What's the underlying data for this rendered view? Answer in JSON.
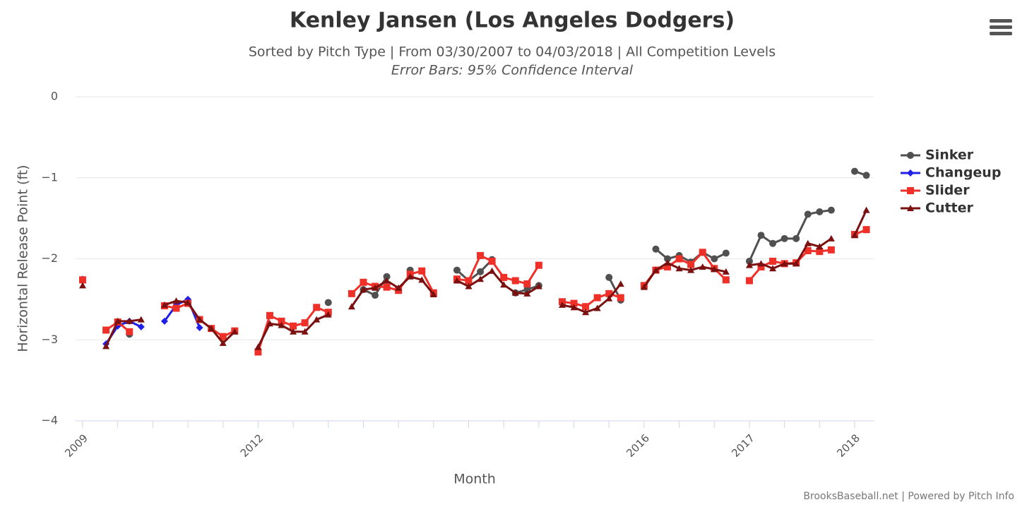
{
  "chart_data": {
    "type": "line",
    "title": "Kenley Jansen (Los Angeles Dodgers)",
    "subtitle": "Sorted by Pitch Type | From 03/30/2007 to 04/03/2018 | All Competition Levels",
    "note": "Error Bars: 95% Confidence Interval",
    "x_label": "Month",
    "y_label": "Horizontal Release Point (ft)",
    "credits": "BrooksBaseball.net | Powered by Pitch Info",
    "ylim": [
      -4,
      0
    ],
    "yticks": [
      0,
      {
        "value": -1,
        "label": "−1"
      },
      {
        "value": -2,
        "label": "−2"
      },
      {
        "value": -3,
        "label": "−3"
      },
      {
        "value": -4,
        "label": "−4"
      }
    ],
    "grid": true,
    "legend": "right",
    "categories": [
      "2009",
      null,
      null,
      null,
      null,
      null,
      null,
      null,
      null,
      null,
      null,
      null,
      null,
      null,
      null,
      "2012",
      null,
      null,
      null,
      null,
      null,
      null,
      null,
      null,
      null,
      null,
      null,
      null,
      null,
      null,
      null,
      null,
      null,
      null,
      null,
      null,
      null,
      null,
      null,
      null,
      null,
      null,
      null,
      null,
      null,
      null,
      null,
      null,
      "2016",
      null,
      null,
      null,
      null,
      null,
      null,
      null,
      null,
      "2017",
      null,
      null,
      null,
      null,
      null,
      null,
      null,
      null,
      "2018",
      null
    ],
    "series": [
      {
        "name": "Sinker",
        "color": "#505050",
        "marker": "circle",
        "values": [
          null,
          null,
          null,
          null,
          -2.93,
          null,
          null,
          null,
          null,
          null,
          null,
          null,
          null,
          null,
          null,
          null,
          null,
          null,
          null,
          null,
          null,
          -2.54,
          null,
          null,
          -2.38,
          -2.45,
          -2.22,
          null,
          -2.14,
          null,
          null,
          null,
          -2.14,
          -2.27,
          -2.16,
          -2.01,
          null,
          -2.42,
          -2.38,
          -2.33,
          null,
          null,
          null,
          null,
          null,
          -2.23,
          -2.51,
          null,
          null,
          -1.88,
          -2.0,
          -1.96,
          -2.04,
          -1.92,
          -2.0,
          -1.93,
          null,
          -2.03,
          -1.71,
          -1.81,
          -1.75,
          -1.75,
          -1.45,
          -1.42,
          -1.4,
          null,
          -0.92,
          -0.97
        ]
      },
      {
        "name": "Changeup",
        "color": "#1f1fe8",
        "marker": "diamond",
        "values": [
          -2.25,
          null,
          -3.05,
          -2.83,
          -2.77,
          -2.84,
          null,
          -2.77,
          -2.57,
          -2.5,
          -2.85,
          null,
          null,
          null,
          null,
          null,
          null,
          null,
          null,
          null,
          null,
          null,
          null,
          null,
          null,
          null,
          null,
          null,
          null,
          null,
          null,
          null,
          null,
          null,
          null,
          null,
          null,
          null,
          null,
          null,
          null,
          null,
          null,
          null,
          null,
          null,
          null,
          null,
          null,
          null,
          null,
          null,
          null,
          null,
          null,
          null,
          null,
          null,
          null,
          null,
          null,
          null,
          null,
          null,
          null,
          null,
          null,
          null
        ]
      },
      {
        "name": "Slider",
        "color": "#ee3028",
        "marker": "square",
        "values": [
          -2.26,
          null,
          -2.88,
          -2.78,
          -2.9,
          null,
          null,
          -2.58,
          -2.61,
          -2.55,
          -2.75,
          -2.86,
          -2.96,
          -2.89,
          null,
          -3.15,
          -2.7,
          -2.77,
          -2.83,
          -2.79,
          -2.6,
          -2.66,
          null,
          -2.43,
          -2.29,
          -2.34,
          -2.35,
          -2.39,
          -2.19,
          -2.15,
          -2.42,
          null,
          -2.25,
          -2.27,
          -1.96,
          -2.03,
          -2.23,
          -2.27,
          -2.31,
          -2.08,
          null,
          -2.53,
          -2.55,
          -2.59,
          -2.48,
          -2.43,
          -2.48,
          null,
          -2.33,
          -2.14,
          -2.1,
          -2.0,
          -2.07,
          -1.92,
          -2.12,
          -2.26,
          null,
          -2.27,
          -2.1,
          -2.03,
          -2.06,
          -2.05,
          -1.9,
          -1.91,
          -1.89,
          null,
          -1.7,
          -1.64
        ]
      },
      {
        "name": "Cutter",
        "color": "#7a1010",
        "marker": "triangle",
        "values": [
          -2.33,
          null,
          -3.08,
          -2.77,
          -2.77,
          -2.75,
          null,
          -2.57,
          -2.52,
          -2.54,
          -2.75,
          -2.86,
          -3.04,
          -2.9,
          null,
          -3.09,
          -2.8,
          -2.82,
          -2.9,
          -2.9,
          -2.75,
          -2.69,
          null,
          -2.59,
          -2.38,
          -2.36,
          -2.27,
          -2.36,
          -2.22,
          -2.26,
          -2.44,
          null,
          -2.27,
          -2.34,
          -2.25,
          -2.15,
          -2.32,
          -2.42,
          -2.43,
          -2.34,
          null,
          -2.57,
          -2.6,
          -2.66,
          -2.61,
          -2.49,
          -2.31,
          null,
          -2.35,
          -2.14,
          -2.05,
          -2.12,
          -2.14,
          -2.1,
          -2.13,
          -2.16,
          null,
          -2.08,
          -2.06,
          -2.12,
          -2.06,
          -2.06,
          -1.81,
          -1.85,
          -1.75,
          null,
          -1.71,
          -1.4
        ]
      }
    ]
  }
}
